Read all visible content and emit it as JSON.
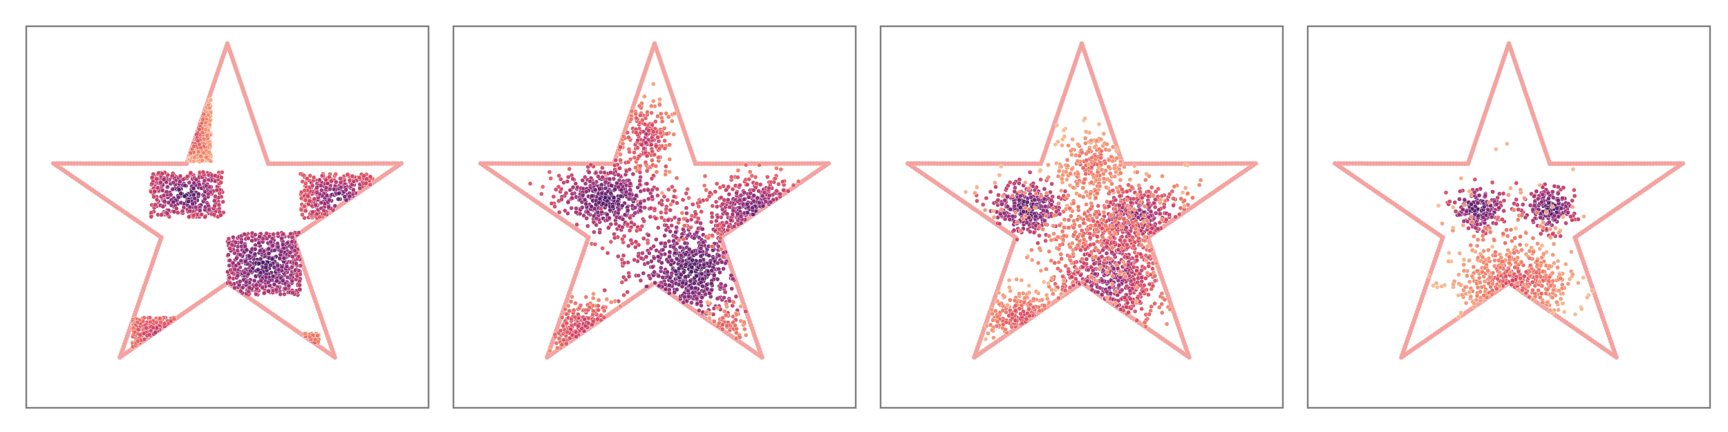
{
  "figure": {
    "background": "#ffffff",
    "frame_color": "#808080",
    "star_outline_color": "#f4a3a0"
  },
  "chart_data": [
    {
      "type": "scatter",
      "panel": 1,
      "title": "",
      "xlabel": "",
      "ylabel": "",
      "xlim": [
        -1.1,
        1.1
      ],
      "ylim": [
        -1.1,
        1.1
      ],
      "grid": false,
      "axis_ticks": false,
      "colormap": "magma",
      "star_outline": {
        "outer_radius": 1.0,
        "inner_radius": 0.38,
        "points": 5,
        "color": "#f4a3a0"
      },
      "clusters": [
        {
          "cx": -0.2,
          "cy": 0.5,
          "sx": 0.11,
          "sy": 0.18,
          "n": 260,
          "shape": "box",
          "density": [
            0.1,
            0.6
          ]
        },
        {
          "cx": -0.22,
          "cy": 0.13,
          "sx": 0.2,
          "sy": 0.13,
          "n": 420,
          "shape": "box",
          "density": [
            0.5,
            1.0
          ]
        },
        {
          "cx": 0.2,
          "cy": -0.27,
          "sx": 0.2,
          "sy": 0.18,
          "n": 620,
          "shape": "box",
          "density": [
            0.6,
            1.0
          ]
        },
        {
          "cx": 0.6,
          "cy": 0.12,
          "sx": 0.2,
          "sy": 0.13,
          "n": 300,
          "shape": "box",
          "density": [
            0.4,
            0.9
          ]
        },
        {
          "cx": -0.36,
          "cy": -0.68,
          "sx": 0.16,
          "sy": 0.1,
          "n": 200,
          "shape": "box",
          "density": [
            0.3,
            0.7
          ]
        },
        {
          "cx": 0.45,
          "cy": -0.75,
          "sx": 0.05,
          "sy": 0.08,
          "n": 40,
          "shape": "box",
          "density": [
            0.2,
            0.5
          ]
        }
      ]
    },
    {
      "type": "scatter",
      "panel": 2,
      "title": "",
      "xlabel": "",
      "ylabel": "",
      "xlim": [
        -1.1,
        1.1
      ],
      "ylim": [
        -1.1,
        1.1
      ],
      "grid": false,
      "axis_ticks": false,
      "colormap": "magma",
      "star_outline": {
        "outer_radius": 1.0,
        "inner_radius": 0.38,
        "points": 5,
        "color": "#f4a3a0"
      },
      "clusters": [
        {
          "cx": -0.05,
          "cy": 0.45,
          "sx": 0.08,
          "sy": 0.12,
          "n": 200,
          "shape": "gauss",
          "density": [
            0.1,
            0.6
          ]
        },
        {
          "cx": -0.25,
          "cy": 0.1,
          "sx": 0.15,
          "sy": 0.1,
          "n": 480,
          "shape": "gauss",
          "density": [
            0.4,
            1.0
          ]
        },
        {
          "cx": 0.2,
          "cy": -0.3,
          "sx": 0.15,
          "sy": 0.15,
          "n": 620,
          "shape": "gauss",
          "density": [
            0.5,
            1.0
          ]
        },
        {
          "cx": 0.55,
          "cy": 0.05,
          "sx": 0.15,
          "sy": 0.09,
          "n": 300,
          "shape": "gauss",
          "density": [
            0.3,
            0.9
          ]
        },
        {
          "cx": -0.36,
          "cy": -0.65,
          "sx": 0.12,
          "sy": 0.08,
          "n": 180,
          "shape": "gauss",
          "density": [
            0.2,
            0.6
          ]
        },
        {
          "cx": 0.4,
          "cy": -0.65,
          "sx": 0.06,
          "sy": 0.08,
          "n": 60,
          "shape": "gauss",
          "density": [
            0.1,
            0.4
          ]
        }
      ]
    },
    {
      "type": "scatter",
      "panel": 3,
      "title": "",
      "xlabel": "",
      "ylabel": "",
      "xlim": [
        -1.1,
        1.1
      ],
      "ylim": [
        -1.1,
        1.1
      ],
      "grid": false,
      "axis_ticks": false,
      "colormap": "magma",
      "star_outline": {
        "outer_radius": 1.0,
        "inner_radius": 0.38,
        "points": 5,
        "color": "#f4a3a0"
      },
      "clusters": [
        {
          "cx": -0.3,
          "cy": 0.05,
          "sx": 0.09,
          "sy": 0.07,
          "n": 320,
          "shape": "gauss",
          "density": [
            0.5,
            1.0
          ]
        },
        {
          "cx": 0.05,
          "cy": 0.3,
          "sx": 0.1,
          "sy": 0.1,
          "n": 200,
          "shape": "gauss",
          "density": [
            0.0,
            0.4
          ]
        },
        {
          "cx": 0.3,
          "cy": 0.0,
          "sx": 0.15,
          "sy": 0.1,
          "n": 400,
          "shape": "gauss",
          "density": [
            0.2,
            0.8
          ]
        },
        {
          "cx": 0.15,
          "cy": -0.35,
          "sx": 0.15,
          "sy": 0.17,
          "n": 600,
          "shape": "gauss",
          "density": [
            0.2,
            0.8
          ]
        },
        {
          "cx": -0.32,
          "cy": -0.58,
          "sx": 0.12,
          "sy": 0.08,
          "n": 180,
          "shape": "gauss",
          "density": [
            0.0,
            0.5
          ]
        },
        {
          "cx": 0.0,
          "cy": -0.05,
          "sx": 0.3,
          "sy": 0.25,
          "n": 220,
          "shape": "gauss",
          "density": [
            0.0,
            0.3
          ]
        }
      ]
    },
    {
      "type": "scatter",
      "panel": 4,
      "title": "",
      "xlabel": "",
      "ylabel": "",
      "xlim": [
        -1.1,
        1.1
      ],
      "ylim": [
        -1.1,
        1.1
      ],
      "grid": false,
      "axis_ticks": false,
      "colormap": "magma",
      "star_outline": {
        "outer_radius": 1.0,
        "inner_radius": 0.38,
        "points": 5,
        "color": "#f4a3a0"
      },
      "clusters": [
        {
          "cx": -0.17,
          "cy": 0.05,
          "sx": 0.07,
          "sy": 0.06,
          "n": 200,
          "shape": "gauss",
          "density": [
            0.5,
            1.0
          ]
        },
        {
          "cx": 0.22,
          "cy": 0.05,
          "sx": 0.07,
          "sy": 0.06,
          "n": 200,
          "shape": "gauss",
          "density": [
            0.5,
            1.0
          ]
        },
        {
          "cx": 0.04,
          "cy": -0.38,
          "sx": 0.16,
          "sy": 0.1,
          "n": 380,
          "shape": "gauss",
          "density": [
            0.0,
            0.5
          ]
        },
        {
          "cx": 0.0,
          "cy": -0.15,
          "sx": 0.2,
          "sy": 0.2,
          "n": 120,
          "shape": "gauss",
          "density": [
            0.0,
            0.3
          ]
        }
      ]
    }
  ]
}
